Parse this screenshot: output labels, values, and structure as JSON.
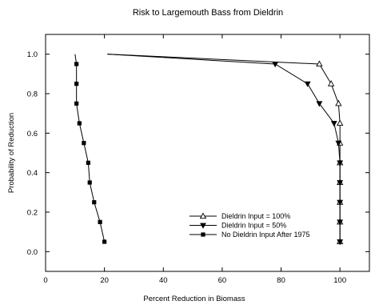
{
  "chart_data": {
    "type": "line",
    "title": "Risk to Largemouth Bass from Dieldrin",
    "xlabel": "Percent Reduction in Biomass",
    "ylabel": "Probability of Reduction",
    "xlim": [
      0,
      110
    ],
    "ylim": [
      -0.1,
      1.1
    ],
    "xticks": [
      0,
      20,
      40,
      60,
      80,
      100
    ],
    "yticks": [
      0.0,
      0.2,
      0.4,
      0.6,
      0.8,
      1.0
    ],
    "xtick_labels": [
      "0",
      "20",
      "40",
      "60",
      "80",
      "100"
    ],
    "ytick_labels": [
      "0.0",
      "0.2",
      "0.4",
      "0.6",
      "0.8",
      "1.0"
    ],
    "grid": false,
    "legend_position": "bottom-right",
    "series": [
      {
        "name": "Dieldrin Input = 100%",
        "marker": "triangle-up-open",
        "points": [
          [
            21,
            1.0
          ],
          [
            93,
            0.95
          ],
          [
            97,
            0.85
          ],
          [
            99.5,
            0.75
          ],
          [
            100,
            0.65
          ],
          [
            100,
            0.55
          ],
          [
            100,
            0.45
          ],
          [
            100,
            0.35
          ],
          [
            100,
            0.25
          ],
          [
            100,
            0.15
          ],
          [
            100,
            0.05
          ]
        ],
        "marker_points": [
          [
            93,
            0.95
          ],
          [
            97,
            0.85
          ],
          [
            99.5,
            0.75
          ],
          [
            100,
            0.65
          ],
          [
            100,
            0.55
          ],
          [
            100,
            0.45
          ],
          [
            100,
            0.35
          ],
          [
            100,
            0.25
          ],
          [
            100,
            0.15
          ],
          [
            100,
            0.05
          ]
        ]
      },
      {
        "name": "Dieldrin Input = 50%",
        "marker": "triangle-down-filled",
        "points": [
          [
            21,
            1.0
          ],
          [
            78,
            0.95
          ],
          [
            89,
            0.85
          ],
          [
            93,
            0.75
          ],
          [
            98,
            0.65
          ],
          [
            99.5,
            0.55
          ],
          [
            100,
            0.45
          ],
          [
            100,
            0.35
          ],
          [
            100,
            0.25
          ],
          [
            100,
            0.15
          ],
          [
            100,
            0.05
          ]
        ],
        "marker_points": [
          [
            78,
            0.95
          ],
          [
            89,
            0.85
          ],
          [
            93,
            0.75
          ],
          [
            98,
            0.65
          ],
          [
            99.5,
            0.55
          ],
          [
            100,
            0.45
          ],
          [
            100,
            0.35
          ],
          [
            100,
            0.25
          ],
          [
            100,
            0.15
          ],
          [
            100,
            0.05
          ]
        ]
      },
      {
        "name": "No Dieldrin Input After 1975",
        "marker": "square-filled",
        "points": [
          [
            10,
            1.0
          ],
          [
            10.5,
            0.95
          ],
          [
            10.5,
            0.85
          ],
          [
            10.5,
            0.75
          ],
          [
            11.5,
            0.65
          ],
          [
            13,
            0.55
          ],
          [
            14.5,
            0.45
          ],
          [
            15,
            0.35
          ],
          [
            16.5,
            0.25
          ],
          [
            18.5,
            0.15
          ],
          [
            20,
            0.05
          ]
        ],
        "marker_points": [
          [
            10.5,
            0.95
          ],
          [
            10.5,
            0.85
          ],
          [
            10.5,
            0.75
          ],
          [
            11.5,
            0.65
          ],
          [
            13,
            0.55
          ],
          [
            14.5,
            0.45
          ],
          [
            15,
            0.35
          ],
          [
            16.5,
            0.25
          ],
          [
            18.5,
            0.15
          ],
          [
            20,
            0.05
          ]
        ]
      }
    ]
  }
}
